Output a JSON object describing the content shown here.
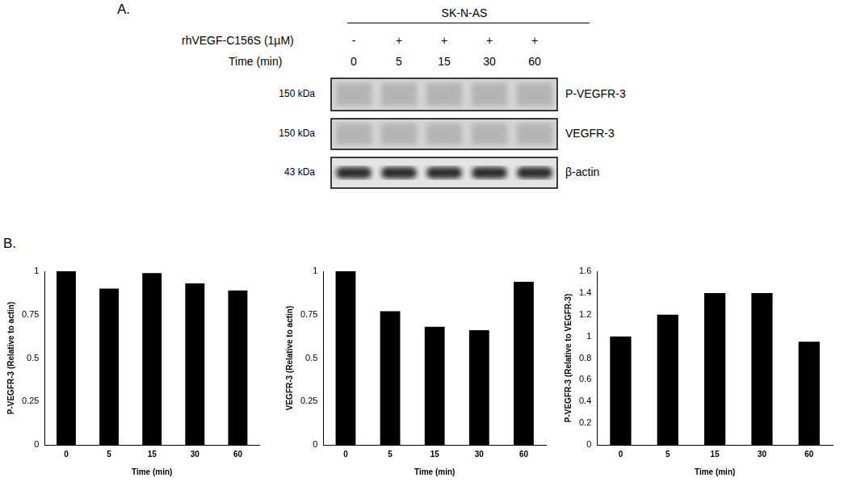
{
  "blot": {
    "panel_label": "A.",
    "cell_line": "SK-N-AS",
    "treatment": {
      "label": "rhVEGF-C156S (1µM)",
      "values": [
        "-",
        "+",
        "+",
        "+",
        "+"
      ]
    },
    "time": {
      "label": "Time (min)",
      "values": [
        "0",
        "5",
        "15",
        "30",
        "60"
      ]
    },
    "rows": [
      {
        "label": "P-VEGFR-3",
        "size": "150 kDa"
      },
      {
        "label": "VEGFR-3",
        "size": "150 kDa"
      },
      {
        "label": "β-actin",
        "size": "43 kDa"
      }
    ]
  },
  "panel_b_label": "B.",
  "chart_data": [
    {
      "type": "bar",
      "categories": [
        "0",
        "5",
        "15",
        "30",
        "60"
      ],
      "values": [
        1,
        0.9,
        0.99,
        0.93,
        0.89
      ],
      "color": "#000000",
      "x_label": "Time (min)",
      "y_label": "P-VEGFR-3 (Relative to actin)",
      "ylim": [
        0,
        1
      ],
      "yticks": [
        0,
        0.25,
        0.5,
        0.75,
        1
      ],
      "grid": false
    },
    {
      "type": "bar",
      "categories": [
        "0",
        "5",
        "15",
        "30",
        "60"
      ],
      "values": [
        1,
        0.77,
        0.68,
        0.66,
        0.94
      ],
      "color": "#000000",
      "x_label": "Time (min)",
      "y_label": "VEGFR-3 (Relative to actin)",
      "ylim": [
        0,
        1
      ],
      "yticks": [
        0,
        0.25,
        0.5,
        0.75,
        1
      ],
      "grid": false
    },
    {
      "type": "bar",
      "categories": [
        "0",
        "5",
        "15",
        "30",
        "60"
      ],
      "values": [
        1,
        1.2,
        1.4,
        1.4,
        0.95
      ],
      "color": "#000000",
      "x_label": "Time (min)",
      "y_label": "P-VEGFR-3 (Relative to VEGFR-3)",
      "ylim": [
        0,
        1.6
      ],
      "yticks": [
        0,
        0.2,
        0.4,
        0.6,
        0.8,
        1,
        1.2,
        1.4,
        1.6
      ],
      "grid": false
    }
  ]
}
